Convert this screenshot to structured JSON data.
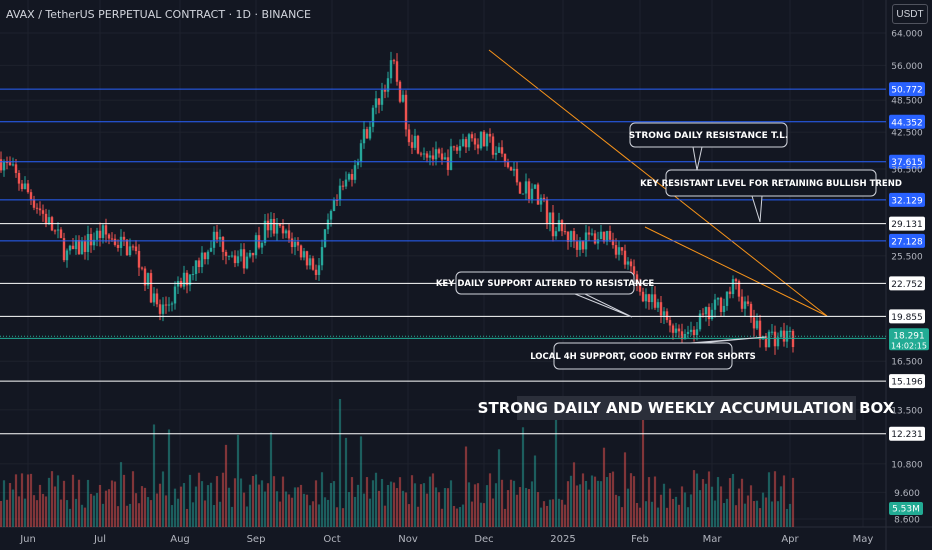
{
  "header": {
    "symbol": "AVAX / TetherUS PERPETUAL CONTRACT · 1D · BINANCE",
    "currency": "USDT"
  },
  "chart_data": {
    "type": "candlestick",
    "y_scale": "log",
    "ylim": [
      8.6,
      64.0
    ],
    "y_tick_labels": [
      "64.000",
      "56.000",
      "48.500",
      "42.500",
      "36.500",
      "25.500",
      "16.500",
      "13.500",
      "10.800",
      "9.600",
      "8.600"
    ],
    "x_tick_labels": [
      "Jun",
      "Jul",
      "Aug",
      "Sep",
      "Oct",
      "Nov",
      "Dec",
      "2025",
      "Feb",
      "Mar",
      "Apr",
      "May"
    ],
    "horizontal_levels": [
      {
        "value": "50.772",
        "color": "#2962ff"
      },
      {
        "value": "44.352",
        "color": "#2962ff"
      },
      {
        "value": "37.615",
        "color": "#2962ff"
      },
      {
        "value": "32.129",
        "color": "#2962ff"
      },
      {
        "value": "29.131",
        "color": "#ffffff"
      },
      {
        "value": "27.128",
        "color": "#2962ff"
      },
      {
        "value": "22.752",
        "color": "#ffffff"
      },
      {
        "value": "19.855",
        "color": "#ffffff"
      },
      {
        "value": "18.134",
        "color": "#22ab94"
      },
      {
        "value": "15.196",
        "color": "#ffffff"
      },
      {
        "value": "12.231",
        "color": "#ffffff"
      }
    ],
    "last_price": {
      "value": "18.291",
      "countdown": "14:02:15",
      "color": "#22ab94"
    },
    "volume_label": "5.53M",
    "annotations": [
      "STRONG DAILY RESISTANCE T.L.",
      "KEY RESISTANT LEVEL FOR RETAINING BULLISH TREND",
      "KEY DAILY SUPPORT ALTERED TO RESISTANCE",
      "LOCAL 4H SUPPORT, GOOD ENTRY FOR SHORTS",
      "STRONG DAILY AND WEEKLY ACCUMULATION BOX"
    ],
    "colors": {
      "up": "#26a69a",
      "down": "#ef5350",
      "trendline": "#f7931a",
      "background": "#131722"
    }
  }
}
